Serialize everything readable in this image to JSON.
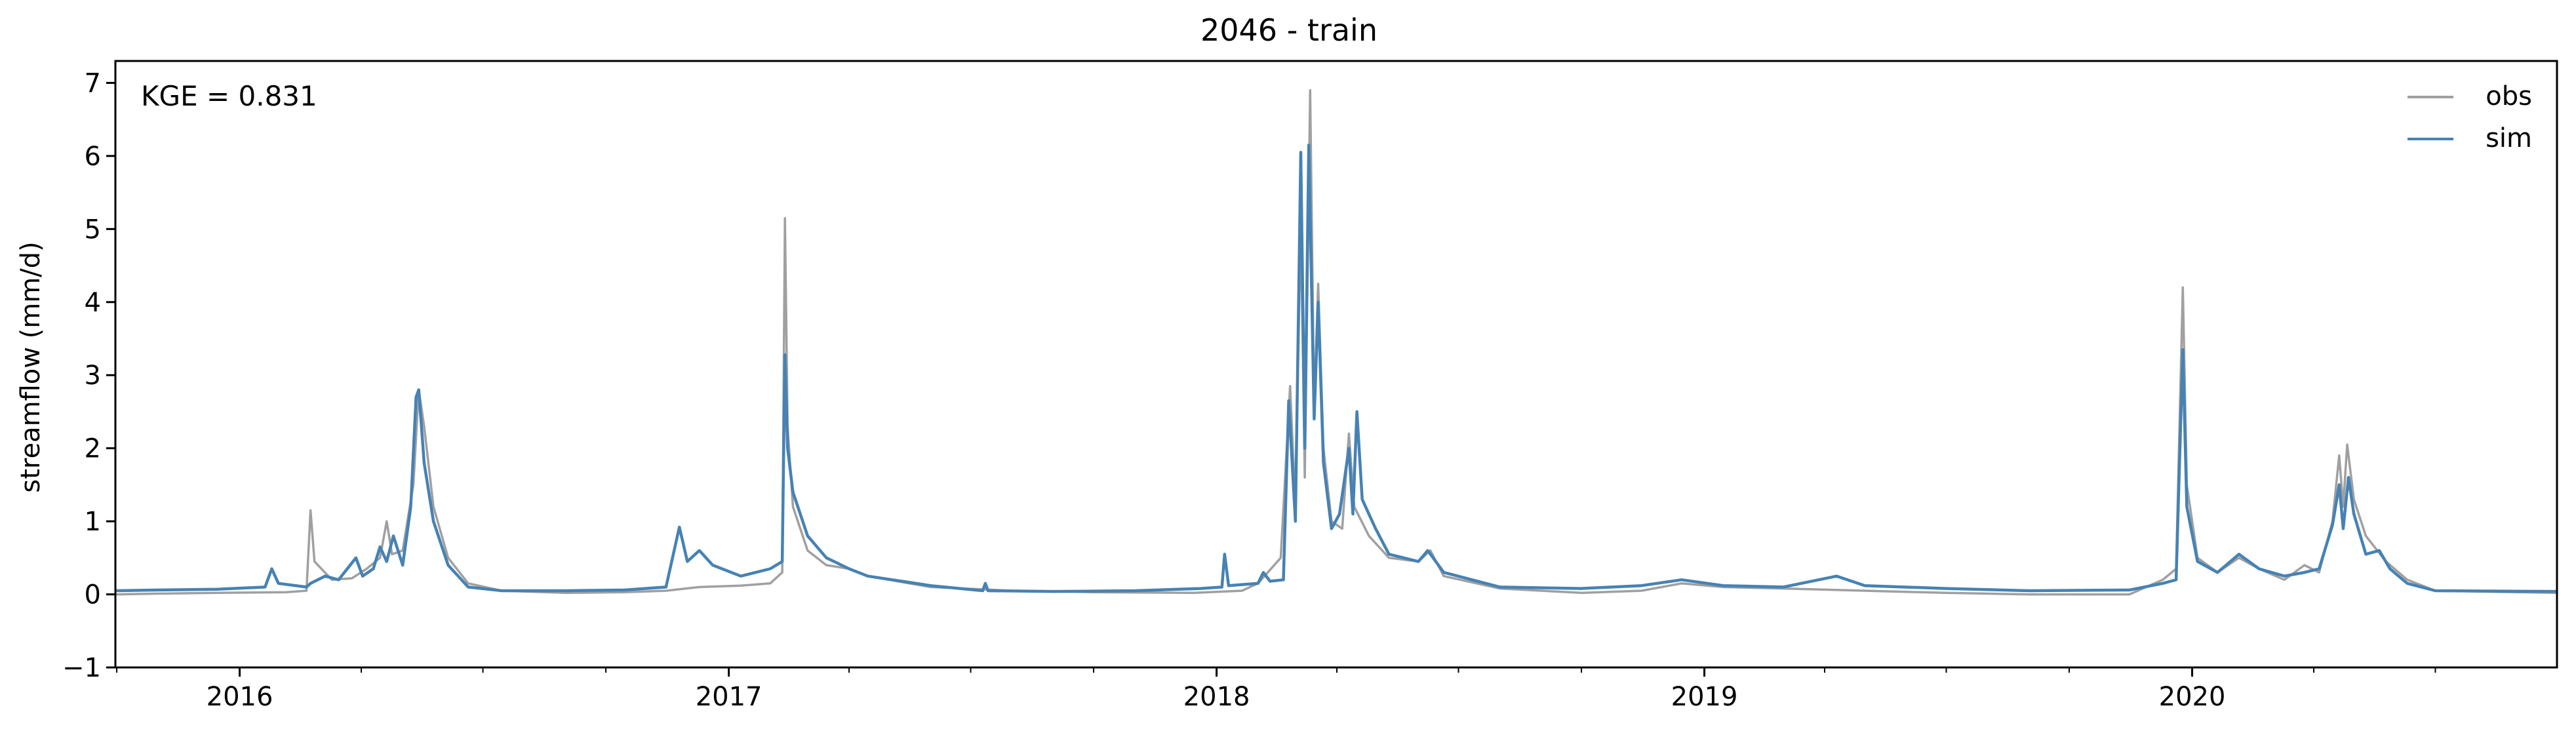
{
  "chart_data": {
    "type": "line",
    "title": "2046 - train",
    "ylabel": "streamflow (mm/d)",
    "xlabel": "",
    "annotation": "KGE = 0.831",
    "xlim": [
      "2015-09-30",
      "2020-09-30"
    ],
    "ylim": [
      -1,
      7.3
    ],
    "yticks": [
      -1,
      0,
      1,
      2,
      3,
      4,
      5,
      6,
      7
    ],
    "xticks": [
      {
        "label": "2016",
        "date": "2016-01-01"
      },
      {
        "label": "2017",
        "date": "2017-01-01"
      },
      {
        "label": "2018",
        "date": "2018-01-01"
      },
      {
        "label": "2019",
        "date": "2019-01-01"
      },
      {
        "label": "2020",
        "date": "2020-01-01"
      }
    ],
    "legend_position": "top-right",
    "grid": false,
    "series": [
      {
        "name": "obs",
        "color": "#a0a0a0",
        "points": [
          [
            "2015-09-30",
            0.0
          ],
          [
            "2015-11-01",
            0.01
          ],
          [
            "2015-12-15",
            0.02
          ],
          [
            "2016-02-05",
            0.03
          ],
          [
            "2016-02-20",
            0.05
          ],
          [
            "2016-02-23",
            1.15
          ],
          [
            "2016-02-26",
            0.45
          ],
          [
            "2016-03-10",
            0.2
          ],
          [
            "2016-03-25",
            0.22
          ],
          [
            "2016-04-05",
            0.35
          ],
          [
            "2016-04-15",
            0.5
          ],
          [
            "2016-04-20",
            1.0
          ],
          [
            "2016-04-24",
            0.55
          ],
          [
            "2016-05-02",
            0.6
          ],
          [
            "2016-05-10",
            1.5
          ],
          [
            "2016-05-14",
            2.8
          ],
          [
            "2016-05-18",
            2.3
          ],
          [
            "2016-05-25",
            1.2
          ],
          [
            "2016-06-05",
            0.5
          ],
          [
            "2016-06-20",
            0.15
          ],
          [
            "2016-07-15",
            0.05
          ],
          [
            "2016-09-01",
            0.02
          ],
          [
            "2016-10-15",
            0.03
          ],
          [
            "2016-11-15",
            0.05
          ],
          [
            "2016-12-10",
            0.1
          ],
          [
            "2017-01-10",
            0.12
          ],
          [
            "2017-02-01",
            0.15
          ],
          [
            "2017-02-10",
            0.3
          ],
          [
            "2017-02-12",
            5.15
          ],
          [
            "2017-02-14",
            2.3
          ],
          [
            "2017-02-18",
            1.2
          ],
          [
            "2017-03-01",
            0.6
          ],
          [
            "2017-03-15",
            0.4
          ],
          [
            "2017-04-01",
            0.35
          ],
          [
            "2017-04-15",
            0.25
          ],
          [
            "2017-06-01",
            0.1
          ],
          [
            "2017-08-01",
            0.05
          ],
          [
            "2017-10-01",
            0.03
          ],
          [
            "2017-12-15",
            0.02
          ],
          [
            "2018-01-20",
            0.05
          ],
          [
            "2018-02-01",
            0.15
          ],
          [
            "2018-02-18",
            0.5
          ],
          [
            "2018-02-25",
            2.85
          ],
          [
            "2018-03-01",
            1.2
          ],
          [
            "2018-03-05",
            5.1
          ],
          [
            "2018-03-08",
            1.6
          ],
          [
            "2018-03-12",
            6.9
          ],
          [
            "2018-03-15",
            2.5
          ],
          [
            "2018-03-18",
            4.25
          ],
          [
            "2018-03-22",
            2.0
          ],
          [
            "2018-03-28",
            1.0
          ],
          [
            "2018-04-05",
            0.9
          ],
          [
            "2018-04-10",
            2.2
          ],
          [
            "2018-04-14",
            1.2
          ],
          [
            "2018-04-25",
            0.8
          ],
          [
            "2018-05-10",
            0.5
          ],
          [
            "2018-06-01",
            0.45
          ],
          [
            "2018-06-10",
            0.6
          ],
          [
            "2018-06-20",
            0.25
          ],
          [
            "2018-08-01",
            0.08
          ],
          [
            "2018-10-01",
            0.02
          ],
          [
            "2018-11-15",
            0.05
          ],
          [
            "2018-12-15",
            0.15
          ],
          [
            "2019-01-15",
            0.1
          ],
          [
            "2019-03-01",
            0.08
          ],
          [
            "2019-05-01",
            0.05
          ],
          [
            "2019-07-01",
            0.02
          ],
          [
            "2019-09-01",
            0.0
          ],
          [
            "2019-11-15",
            0.0
          ],
          [
            "2019-12-10",
            0.2
          ],
          [
            "2019-12-20",
            0.35
          ],
          [
            "2019-12-25",
            4.2
          ],
          [
            "2019-12-28",
            1.5
          ],
          [
            "2020-01-05",
            0.5
          ],
          [
            "2020-01-20",
            0.3
          ],
          [
            "2020-02-05",
            0.5
          ],
          [
            "2020-02-20",
            0.35
          ],
          [
            "2020-03-10",
            0.2
          ],
          [
            "2020-03-25",
            0.4
          ],
          [
            "2020-04-05",
            0.3
          ],
          [
            "2020-04-15",
            1.0
          ],
          [
            "2020-04-20",
            1.9
          ],
          [
            "2020-04-23",
            1.2
          ],
          [
            "2020-04-26",
            2.05
          ],
          [
            "2020-05-01",
            1.3
          ],
          [
            "2020-05-10",
            0.8
          ],
          [
            "2020-05-25",
            0.45
          ],
          [
            "2020-06-10",
            0.2
          ],
          [
            "2020-07-01",
            0.05
          ],
          [
            "2020-09-30",
            0.02
          ]
        ]
      },
      {
        "name": "sim",
        "color": "#4682b4",
        "points": [
          [
            "2015-09-30",
            0.05
          ],
          [
            "2015-11-01",
            0.06
          ],
          [
            "2015-12-15",
            0.07
          ],
          [
            "2016-01-20",
            0.1
          ],
          [
            "2016-01-25",
            0.35
          ],
          [
            "2016-01-30",
            0.15
          ],
          [
            "2016-02-20",
            0.1
          ],
          [
            "2016-02-23",
            0.15
          ],
          [
            "2016-03-05",
            0.25
          ],
          [
            "2016-03-15",
            0.2
          ],
          [
            "2016-03-28",
            0.5
          ],
          [
            "2016-04-02",
            0.25
          ],
          [
            "2016-04-10",
            0.35
          ],
          [
            "2016-04-15",
            0.65
          ],
          [
            "2016-04-20",
            0.45
          ],
          [
            "2016-04-25",
            0.8
          ],
          [
            "2016-05-02",
            0.4
          ],
          [
            "2016-05-08",
            1.2
          ],
          [
            "2016-05-12",
            2.7
          ],
          [
            "2016-05-14",
            2.8
          ],
          [
            "2016-05-18",
            1.8
          ],
          [
            "2016-05-25",
            1.0
          ],
          [
            "2016-06-05",
            0.4
          ],
          [
            "2016-06-20",
            0.1
          ],
          [
            "2016-07-15",
            0.05
          ],
          [
            "2016-09-01",
            0.05
          ],
          [
            "2016-10-15",
            0.06
          ],
          [
            "2016-11-15",
            0.1
          ],
          [
            "2016-11-25",
            0.92
          ],
          [
            "2016-12-01",
            0.45
          ],
          [
            "2016-12-10",
            0.6
          ],
          [
            "2016-12-20",
            0.4
          ],
          [
            "2017-01-10",
            0.25
          ],
          [
            "2017-02-01",
            0.35
          ],
          [
            "2017-02-10",
            0.45
          ],
          [
            "2017-02-12",
            3.28
          ],
          [
            "2017-02-14",
            2.0
          ],
          [
            "2017-02-18",
            1.4
          ],
          [
            "2017-03-01",
            0.8
          ],
          [
            "2017-03-15",
            0.5
          ],
          [
            "2017-04-01",
            0.35
          ],
          [
            "2017-04-15",
            0.25
          ],
          [
            "2017-06-01",
            0.12
          ],
          [
            "2017-07-10",
            0.05
          ],
          [
            "2017-07-12",
            0.15
          ],
          [
            "2017-07-14",
            0.05
          ],
          [
            "2017-09-01",
            0.04
          ],
          [
            "2017-11-01",
            0.05
          ],
          [
            "2017-12-20",
            0.08
          ],
          [
            "2018-01-05",
            0.1
          ],
          [
            "2018-01-07",
            0.55
          ],
          [
            "2018-01-10",
            0.12
          ],
          [
            "2018-02-01",
            0.15
          ],
          [
            "2018-02-05",
            0.3
          ],
          [
            "2018-02-10",
            0.18
          ],
          [
            "2018-02-20",
            0.2
          ],
          [
            "2018-02-24",
            2.65
          ],
          [
            "2018-03-01",
            1.0
          ],
          [
            "2018-03-05",
            6.05
          ],
          [
            "2018-03-08",
            2.0
          ],
          [
            "2018-03-11",
            6.15
          ],
          [
            "2018-03-15",
            2.4
          ],
          [
            "2018-03-18",
            4.0
          ],
          [
            "2018-03-22",
            1.8
          ],
          [
            "2018-03-28",
            0.9
          ],
          [
            "2018-04-03",
            1.1
          ],
          [
            "2018-04-10",
            2.0
          ],
          [
            "2018-04-13",
            1.1
          ],
          [
            "2018-04-16",
            2.5
          ],
          [
            "2018-04-20",
            1.3
          ],
          [
            "2018-04-30",
            0.9
          ],
          [
            "2018-05-10",
            0.55
          ],
          [
            "2018-06-01",
            0.45
          ],
          [
            "2018-06-08",
            0.6
          ],
          [
            "2018-06-20",
            0.3
          ],
          [
            "2018-08-01",
            0.1
          ],
          [
            "2018-10-01",
            0.08
          ],
          [
            "2018-11-15",
            0.12
          ],
          [
            "2018-12-15",
            0.2
          ],
          [
            "2019-01-15",
            0.12
          ],
          [
            "2019-03-01",
            0.1
          ],
          [
            "2019-04-10",
            0.25
          ],
          [
            "2019-05-01",
            0.12
          ],
          [
            "2019-07-01",
            0.08
          ],
          [
            "2019-09-01",
            0.05
          ],
          [
            "2019-11-15",
            0.06
          ],
          [
            "2019-12-10",
            0.15
          ],
          [
            "2019-12-20",
            0.2
          ],
          [
            "2019-12-25",
            3.35
          ],
          [
            "2019-12-28",
            1.2
          ],
          [
            "2020-01-05",
            0.45
          ],
          [
            "2020-01-20",
            0.3
          ],
          [
            "2020-02-05",
            0.55
          ],
          [
            "2020-02-20",
            0.35
          ],
          [
            "2020-03-10",
            0.25
          ],
          [
            "2020-03-25",
            0.3
          ],
          [
            "2020-04-05",
            0.35
          ],
          [
            "2020-04-15",
            0.95
          ],
          [
            "2020-04-20",
            1.5
          ],
          [
            "2020-04-23",
            0.9
          ],
          [
            "2020-04-27",
            1.6
          ],
          [
            "2020-05-01",
            1.1
          ],
          [
            "2020-05-10",
            0.55
          ],
          [
            "2020-05-20",
            0.6
          ],
          [
            "2020-05-28",
            0.35
          ],
          [
            "2020-06-10",
            0.15
          ],
          [
            "2020-07-01",
            0.05
          ],
          [
            "2020-09-30",
            0.04
          ]
        ]
      }
    ]
  }
}
